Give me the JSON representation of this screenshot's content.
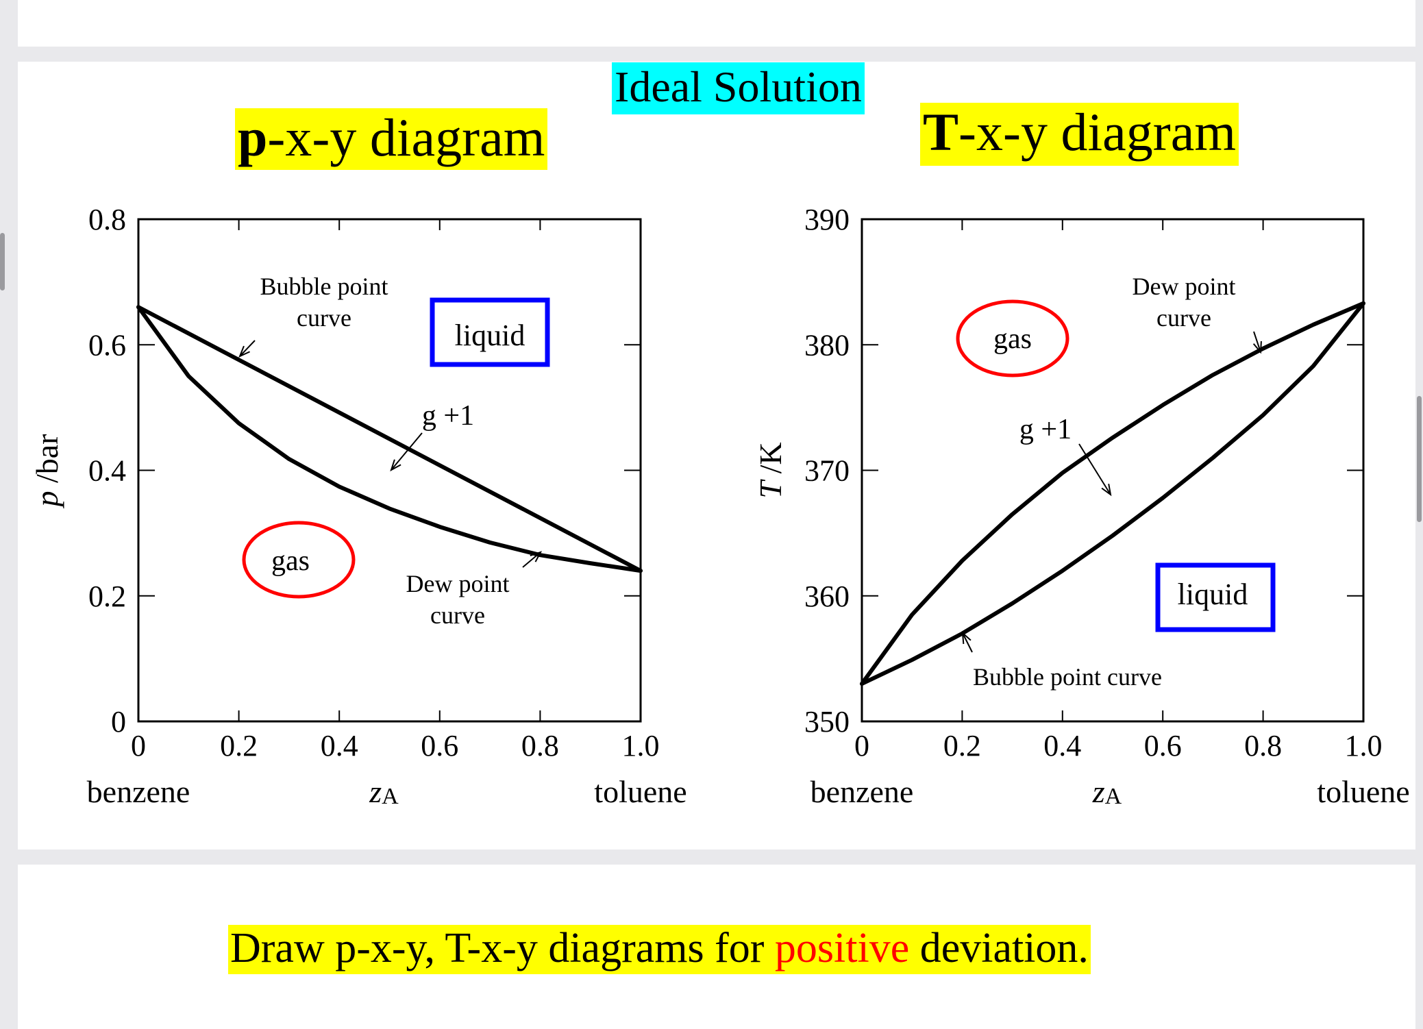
{
  "page": {
    "main_title": "Ideal Solution",
    "pxy_title_bold": "p",
    "pxy_title_rest": "-x-y diagram",
    "txy_title_bold": "T",
    "txy_title_rest": "-x-y diagram",
    "question_before": "Draw p-x-y, T-x-y diagrams for ",
    "question_highlight": "positive",
    "question_after": " deviation.",
    "colors": {
      "title_highlight": "#00ffff",
      "heading_highlight": "#ffff00",
      "gas_marker": "#ff0000",
      "liquid_marker": "#0000ff",
      "positive_text": "#ff0000"
    }
  },
  "chart_data": [
    {
      "type": "line",
      "ylabel": "p /bar",
      "xlabel": "zA",
      "x_tick_labels": [
        "0",
        "0.2",
        "0.4",
        "0.6",
        "0.8",
        "1.0"
      ],
      "y_tick_labels": [
        "0",
        "0.2",
        "0.4",
        "0.6",
        "0.8"
      ],
      "xlim": [
        0,
        1
      ],
      "ylim": [
        0,
        0.8
      ],
      "x_end_labels": [
        "benzene",
        "toluene"
      ],
      "series": [
        {
          "name": "Bubble point curve",
          "x": [
            0,
            1
          ],
          "y": [
            0.66,
            0.24
          ]
        },
        {
          "name": "Dew point curve",
          "x": [
            0,
            0.1,
            0.2,
            0.3,
            0.4,
            0.5,
            0.6,
            0.7,
            0.8,
            0.9,
            1.0
          ],
          "y": [
            0.66,
            0.55,
            0.475,
            0.418,
            0.374,
            0.339,
            0.31,
            0.285,
            0.265,
            0.252,
            0.24
          ]
        }
      ],
      "annotations": {
        "bubble_label": [
          "Bubble point",
          "curve"
        ],
        "dew_label": [
          "Dew point",
          "curve"
        ],
        "two_phase_label": "g +1",
        "gas_label": "gas",
        "liquid_label": "liquid"
      }
    },
    {
      "type": "line",
      "ylabel": "T /K",
      "xlabel": "zA",
      "x_tick_labels": [
        "0",
        "0.2",
        "0.4",
        "0.6",
        "0.8",
        "1.0"
      ],
      "y_tick_labels": [
        "350",
        "360",
        "370",
        "380",
        "390"
      ],
      "xlim": [
        0,
        1
      ],
      "ylim": [
        350,
        390
      ],
      "x_end_labels": [
        "benzene",
        "toluene"
      ],
      "series": [
        {
          "name": "Dew point curve",
          "x": [
            0,
            0.1,
            0.2,
            0.3,
            0.4,
            0.5,
            0.6,
            0.7,
            0.8,
            0.9,
            1.0
          ],
          "y": [
            353.0,
            358.5,
            362.8,
            366.5,
            369.8,
            372.6,
            375.2,
            377.6,
            379.7,
            381.6,
            383.3
          ]
        },
        {
          "name": "Bubble point curve",
          "x": [
            0,
            0.1,
            0.2,
            0.3,
            0.4,
            0.5,
            0.6,
            0.7,
            0.8,
            0.9,
            1.0
          ],
          "y": [
            353.0,
            354.9,
            357.0,
            359.4,
            362.0,
            364.8,
            367.8,
            371.0,
            374.4,
            378.3,
            383.3
          ]
        }
      ],
      "annotations": {
        "dew_label": [
          "Dew point",
          "curve"
        ],
        "bubble_label": "Bubble point curve",
        "two_phase_label": "g +1",
        "gas_label": "gas",
        "liquid_label": "liquid"
      }
    }
  ]
}
